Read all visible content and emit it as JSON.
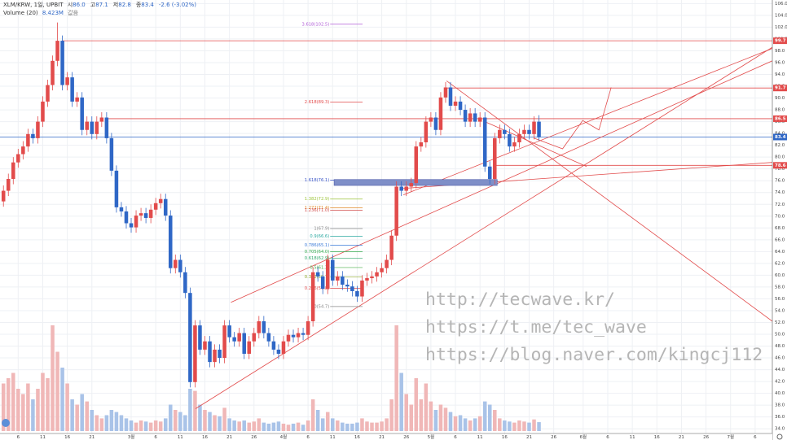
{
  "chart_data": {
    "type": "candlestick",
    "header": {
      "symbol": "XLM/KRW, 1일, UPBIT",
      "fields": [
        {
          "label": "시",
          "value": "86.0"
        },
        {
          "label": "고",
          "value": "87.1"
        },
        {
          "label": "저",
          "value": "82.8"
        },
        {
          "label": "종",
          "value": "83.4"
        }
      ],
      "change": "-2.6 (-3.02%)",
      "volume_label": "Volume (20)",
      "volume_value": "8.423M",
      "volume_suffix": "값음"
    },
    "xlim": [
      -0.7,
      156.5
    ],
    "ylim": [
      33.2,
      106.6
    ],
    "grid": true,
    "up_color": "#e24b4b",
    "down_color": "#2f67c6",
    "volume_up_color": "#f0b7b7",
    "volume_down_color": "#a9c3e8",
    "yticks": [
      {
        "value": 34,
        "label": "34.0"
      },
      {
        "value": 36,
        "label": "36.0"
      },
      {
        "value": 38,
        "label": "38.0"
      },
      {
        "value": 40,
        "label": "40.0"
      },
      {
        "value": 42,
        "label": "42.0"
      },
      {
        "value": 44,
        "label": "44.0"
      },
      {
        "value": 46,
        "label": "46.0"
      },
      {
        "value": 48,
        "label": "48.0"
      },
      {
        "value": 50,
        "label": "50.0"
      },
      {
        "value": 52,
        "label": "52.0"
      },
      {
        "value": 54,
        "label": "54.0"
      },
      {
        "value": 56,
        "label": "56.0"
      },
      {
        "value": 58,
        "label": "58.0"
      },
      {
        "value": 60,
        "label": "60.0"
      },
      {
        "value": 62,
        "label": "62.0"
      },
      {
        "value": 64,
        "label": "64.0"
      },
      {
        "value": 66,
        "label": "66.0"
      },
      {
        "value": 68,
        "label": "68.0"
      },
      {
        "value": 70,
        "label": "70.0"
      },
      {
        "value": 72,
        "label": "72.0"
      },
      {
        "value": 74,
        "label": "74.0"
      },
      {
        "value": 76,
        "label": "76.0"
      },
      {
        "value": 78,
        "label": "78.0"
      },
      {
        "value": 80,
        "label": "80.0"
      },
      {
        "value": 82,
        "label": "82.0"
      },
      {
        "value": 84,
        "label": "84.0"
      },
      {
        "value": 86,
        "label": "86.0"
      },
      {
        "value": 88,
        "label": "88.0"
      },
      {
        "value": 90,
        "label": "90.0"
      },
      {
        "value": 92,
        "label": "92.0"
      },
      {
        "value": 94,
        "label": "94.0"
      },
      {
        "value": 96,
        "label": "96.0"
      },
      {
        "value": 98,
        "label": "98.0"
      },
      {
        "value": 100,
        "label": "100.0"
      },
      {
        "value": 102,
        "label": "102.0"
      },
      {
        "value": 104,
        "label": "104.0"
      },
      {
        "value": 106,
        "label": "106.0"
      }
    ],
    "xticks": [
      {
        "value": 3,
        "label": "6"
      },
      {
        "value": 8,
        "label": "11"
      },
      {
        "value": 13,
        "label": "16"
      },
      {
        "value": 18,
        "label": "21"
      },
      {
        "value": 26,
        "label": "3월"
      },
      {
        "value": 31,
        "label": "6"
      },
      {
        "value": 36,
        "label": "11"
      },
      {
        "value": 41,
        "label": "16"
      },
      {
        "value": 46,
        "label": "21"
      },
      {
        "value": 51,
        "label": "26"
      },
      {
        "value": 57,
        "label": "4월"
      },
      {
        "value": 62,
        "label": "6"
      },
      {
        "value": 67,
        "label": "11"
      },
      {
        "value": 72,
        "label": "16"
      },
      {
        "value": 77,
        "label": "21"
      },
      {
        "value": 82,
        "label": "26"
      },
      {
        "value": 87,
        "label": "5월"
      },
      {
        "value": 92,
        "label": "6"
      },
      {
        "value": 97,
        "label": "11"
      },
      {
        "value": 102,
        "label": "16"
      },
      {
        "value": 107,
        "label": "21"
      },
      {
        "value": 112,
        "label": "26"
      },
      {
        "value": 118,
        "label": "6월"
      },
      {
        "value": 123,
        "label": "6"
      },
      {
        "value": 128,
        "label": "11"
      },
      {
        "value": 133,
        "label": "16"
      },
      {
        "value": 138,
        "label": "21"
      },
      {
        "value": 143,
        "label": "26"
      },
      {
        "value": 148,
        "label": "7월"
      },
      {
        "value": 153,
        "label": "6"
      }
    ],
    "open": [
      72.5,
      74.3,
      76.3,
      79.1,
      80.5,
      81.8,
      83.9,
      83.2,
      86.0,
      89.4,
      92.2,
      96.3,
      99.7,
      92.2,
      93.5,
      89.4,
      90.1,
      84.6,
      86.0,
      83.9,
      86.0,
      86.7,
      83.2,
      77.7,
      71.5,
      70.8,
      68.8,
      68.1,
      70.1,
      70.5,
      69.7,
      71.1,
      72.2,
      72.9,
      70.1,
      61.2,
      62.6,
      60.5,
      57.0,
      41.9,
      51.5,
      47.4,
      48.8,
      45.3,
      47.4,
      46.0,
      51.5,
      49.5,
      48.8,
      50.2,
      46.7,
      48.8,
      50.2,
      52.2,
      50.2,
      48.8,
      47.4,
      46.7,
      48.8,
      49.9,
      49.5,
      50.2,
      49.9,
      52.2,
      60.5,
      59.8,
      57.7,
      62.6,
      59.1,
      59.8,
      58.4,
      58.1,
      57.3,
      56.4,
      59.1,
      59.5,
      59.8,
      60.5,
      61.2,
      62.6,
      66.7,
      75.0,
      74.3,
      75.0,
      75.6,
      81.8,
      82.5,
      86.0,
      86.7,
      84.6,
      90.1,
      91.8,
      88.7,
      89.4,
      88.0,
      86.0,
      87.4,
      86.0,
      86.7,
      78.4,
      76.3,
      83.2,
      84.6,
      83.9,
      81.8,
      82.5,
      83.9,
      84.6,
      83.9,
      86.0
    ],
    "high": [
      75.2,
      77.2,
      80.0,
      81.4,
      82.7,
      84.8,
      84.8,
      86.9,
      90.3,
      93.1,
      97.2,
      102.8,
      100.6,
      94.4,
      94.4,
      91.0,
      91.0,
      86.9,
      86.9,
      86.9,
      87.6,
      87.6,
      84.1,
      78.6,
      72.4,
      71.7,
      69.7,
      71.0,
      71.4,
      71.4,
      72.0,
      73.1,
      73.8,
      73.8,
      71.0,
      63.5,
      63.5,
      61.4,
      57.9,
      52.4,
      52.4,
      49.7,
      49.7,
      48.3,
      48.3,
      52.4,
      52.4,
      50.4,
      51.1,
      51.1,
      49.7,
      51.1,
      53.1,
      53.1,
      51.1,
      49.7,
      48.3,
      49.7,
      50.8,
      50.8,
      51.1,
      51.1,
      53.1,
      61.4,
      61.4,
      60.7,
      63.5,
      63.5,
      60.7,
      60.7,
      59.3,
      59.0,
      58.2,
      60.0,
      60.4,
      60.7,
      61.4,
      62.1,
      63.5,
      67.6,
      75.9,
      75.9,
      75.9,
      76.5,
      82.7,
      83.4,
      86.9,
      87.6,
      87.6,
      91.0,
      92.7,
      92.7,
      90.3,
      90.3,
      88.9,
      88.3,
      88.3,
      87.6,
      87.6,
      79.3,
      84.1,
      85.5,
      85.5,
      84.8,
      83.4,
      84.8,
      85.5,
      85.5,
      86.9,
      87.1
    ],
    "low": [
      71.6,
      73.4,
      75.4,
      78.2,
      79.6,
      80.9,
      82.3,
      82.3,
      85.1,
      88.5,
      91.3,
      95.4,
      91.3,
      91.3,
      88.5,
      88.5,
      83.7,
      83.7,
      83.0,
      83.0,
      85.1,
      82.3,
      76.8,
      70.6,
      69.9,
      67.9,
      67.2,
      67.2,
      69.2,
      68.8,
      68.8,
      70.2,
      71.3,
      69.2,
      60.3,
      60.3,
      59.6,
      56.1,
      41.0,
      41.0,
      46.5,
      46.5,
      44.4,
      44.4,
      45.1,
      45.1,
      48.6,
      47.9,
      47.9,
      45.8,
      45.8,
      47.9,
      49.3,
      49.3,
      47.9,
      46.5,
      45.8,
      45.8,
      47.9,
      48.6,
      48.6,
      49.0,
      49.0,
      51.3,
      58.9,
      56.8,
      56.8,
      58.2,
      58.2,
      57.5,
      57.2,
      56.4,
      55.5,
      55.5,
      58.2,
      58.6,
      58.9,
      59.6,
      60.3,
      61.7,
      65.8,
      73.4,
      73.4,
      74.1,
      74.7,
      80.9,
      81.6,
      85.1,
      83.7,
      83.7,
      89.2,
      87.8,
      87.8,
      87.1,
      85.1,
      85.1,
      85.1,
      85.1,
      77.5,
      75.4,
      75.4,
      82.3,
      83.0,
      80.9,
      80.9,
      81.6,
      83.0,
      83.0,
      83.0,
      82.8
    ],
    "close": [
      74.3,
      76.3,
      79.1,
      80.5,
      81.8,
      83.9,
      83.2,
      86.0,
      89.4,
      92.2,
      96.3,
      99.7,
      92.2,
      93.5,
      89.4,
      90.1,
      84.6,
      86.0,
      83.9,
      86.0,
      86.7,
      83.2,
      77.7,
      71.5,
      70.8,
      68.8,
      68.1,
      70.1,
      70.5,
      69.7,
      71.1,
      72.2,
      72.9,
      70.1,
      61.2,
      62.6,
      60.5,
      57.0,
      41.9,
      51.5,
      47.4,
      48.8,
      45.3,
      47.4,
      46.0,
      51.5,
      49.5,
      48.8,
      50.2,
      46.7,
      48.8,
      50.2,
      52.2,
      50.2,
      48.8,
      47.4,
      46.7,
      48.8,
      49.9,
      49.5,
      50.2,
      49.9,
      52.2,
      60.5,
      59.8,
      57.7,
      62.6,
      59.1,
      59.8,
      58.4,
      58.1,
      57.3,
      56.4,
      59.1,
      59.5,
      59.8,
      60.5,
      61.2,
      62.6,
      66.7,
      75.0,
      74.3,
      75.0,
      75.6,
      81.8,
      82.5,
      86.0,
      86.7,
      84.6,
      90.1,
      91.8,
      88.7,
      89.4,
      88.0,
      86.0,
      87.4,
      86.0,
      86.7,
      78.4,
      76.3,
      83.2,
      84.6,
      83.9,
      81.8,
      82.5,
      83.9,
      84.6,
      83.9,
      86.0,
      83.4
    ],
    "volume": [
      45,
      50,
      55,
      40,
      35,
      45,
      30,
      40,
      55,
      50,
      100,
      75,
      60,
      45,
      30,
      25,
      35,
      28,
      20,
      15,
      12,
      15,
      20,
      18,
      15,
      12,
      10,
      8,
      10,
      9,
      8,
      10,
      9,
      12,
      25,
      20,
      18,
      15,
      40,
      38,
      25,
      20,
      18,
      15,
      14,
      22,
      12,
      10,
      9,
      10,
      8,
      9,
      12,
      8,
      7,
      8,
      9,
      7,
      6,
      7,
      8,
      6,
      10,
      30,
      20,
      12,
      18,
      12,
      10,
      8,
      7,
      7,
      8,
      12,
      9,
      8,
      8,
      9,
      12,
      30,
      100,
      55,
      35,
      25,
      50,
      30,
      45,
      28,
      20,
      25,
      22,
      18,
      14,
      15,
      12,
      10,
      12,
      14,
      28,
      25,
      20,
      12,
      10,
      9,
      8,
      10,
      9,
      8,
      11,
      8.423
    ],
    "price_lines": [
      {
        "value": 99.7,
        "color": "#e24b4b",
        "from": 12
      },
      {
        "value": 91.7,
        "color": "#e24b4b",
        "from": 90
      },
      {
        "value": 86.5,
        "color": "#e24b4b",
        "from": 21
      },
      {
        "value": 78.6,
        "color": "#e24b4b",
        "from": 100
      },
      {
        "value": 83.4,
        "color": "#2f67c6",
        "from": -0.7
      }
    ],
    "trendlines": [
      {
        "x": [
          39.1,
          156.5
        ],
        "y": [
          37.4,
          98.6
        ]
      },
      {
        "x": [
          46.3,
          156.5
        ],
        "y": [
          55.4,
          96.3
        ]
      },
      {
        "x": [
          81.4,
          156.5
        ],
        "y": [
          73.6,
          98.4
        ]
      },
      {
        "x": [
          90.2,
          156.5
        ],
        "y": [
          92.9,
          52.2
        ]
      },
      {
        "x": [
          81.4,
          156.5
        ],
        "y": [
          74.7,
          79.1
        ]
      },
      {
        "x": [
          98.0,
          118.7
        ],
        "y": [
          86.0,
          78.4
        ]
      }
    ],
    "projection": {
      "x": [
        108.0,
        113.8,
        117.9,
        121.2,
        123.7
      ],
      "y": [
        83.2,
        81.4,
        86.2,
        84.6,
        91.8
      ]
    },
    "zone": {
      "x": [
        67.3,
        100.5
      ],
      "y": [
        75.2,
        76.2
      ],
      "color": "#7f8fc8"
    },
    "fib_x": [
      66.5,
      73.1
    ],
    "fib_levels": [
      {
        "value": 102.5,
        "label": "3.618(102.5)",
        "color": "#b05cd6"
      },
      {
        "value": 89.3,
        "label": "2.618(89.3)",
        "color": "#e24b4b"
      },
      {
        "value": 76.1,
        "label": "1.618(76.1)",
        "color": "#3a55c8"
      },
      {
        "value": 72.9,
        "label": "1.382(72.9)",
        "color": "#9cc43a"
      },
      {
        "value": 71.4,
        "label": "1.272(71.4)",
        "color": "#e08a2a"
      },
      {
        "value": 71.0,
        "label": "1.236(71.0)",
        "color": "#d04a4a"
      },
      {
        "value": 67.9,
        "label": "1(67.9)",
        "color": "#888888"
      },
      {
        "value": 66.6,
        "label": "0.9(66.6)",
        "color": "#2aa8a0"
      },
      {
        "value": 65.1,
        "label": "0.786(65.1)",
        "color": "#3a7ad8"
      },
      {
        "value": 64.0,
        "label": "0.705(64.0)",
        "color": "#2fa84a"
      },
      {
        "value": 62.9,
        "label": "0.618(62.9)",
        "color": "#2fa86a"
      },
      {
        "value": 61.3,
        "label": "0.5(61.3)",
        "color": "#4cb04c"
      },
      {
        "value": 59.7,
        "label": "0.382(59.7)",
        "color": "#8aa82a"
      },
      {
        "value": 57.8,
        "label": "0.236(57.8)",
        "color": "#e24b4b"
      },
      {
        "value": 54.7,
        "label": "0(54.7)",
        "color": "#888888"
      }
    ],
    "watermark": [
      "http://tecwave.kr/",
      "https://t.me/tec_wave",
      "https://blog.naver.com/kingcj112"
    ]
  }
}
